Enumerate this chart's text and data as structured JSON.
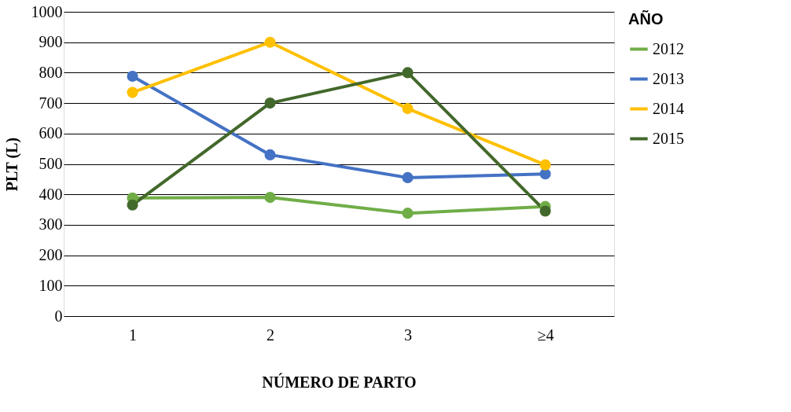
{
  "chart_data": {
    "type": "line",
    "xlabel": "NÚMERO DE PARTO",
    "ylabel": "PLT (L)",
    "legend_title": "AÑO",
    "categories": [
      "1",
      "2",
      "3",
      "≥4"
    ],
    "series": [
      {
        "name": "2012",
        "color": "#70ad47",
        "values": [
          388,
          390,
          338,
          360
        ]
      },
      {
        "name": "2013",
        "color": "#4472c4",
        "values": [
          788,
          530,
          455,
          467
        ]
      },
      {
        "name": "2014",
        "color": "#ffc000",
        "values": [
          735,
          900,
          682,
          497
        ]
      },
      {
        "name": "2015",
        "color": "#43682b",
        "values": [
          365,
          700,
          800,
          345
        ]
      }
    ],
    "ylim": [
      0,
      1000
    ],
    "yticks": [
      0,
      100,
      200,
      300,
      400,
      500,
      600,
      700,
      800,
      900,
      1000
    ],
    "grid": "y",
    "legend": "right",
    "marker": "circle",
    "line_style": "solid"
  }
}
